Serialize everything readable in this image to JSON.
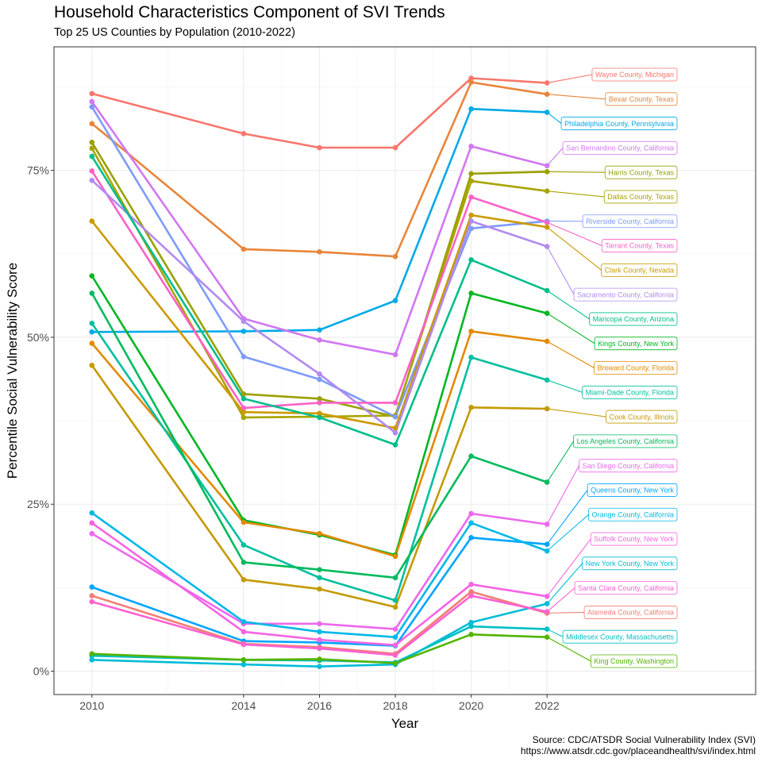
{
  "chart_data": {
    "type": "line",
    "title": "Household Characteristics Component of SVI Trends",
    "subtitle": "Top 25 US Counties by Population (2010-2022)",
    "xlabel": "Year",
    "ylabel": "Percentile Social Vulnerability Score",
    "x": [
      2010,
      2014,
      2016,
      2018,
      2020,
      2022
    ],
    "xlim": [
      2009,
      2027.5
    ],
    "ylim": [
      -0.035,
      0.935
    ],
    "y_ticks": [
      0,
      0.25,
      0.5,
      0.75
    ],
    "y_tick_labels": [
      "0%",
      "25%",
      "50%",
      "75%"
    ],
    "x_tick_labels": [
      "2010",
      "2014",
      "2016",
      "2018",
      "2020",
      "2022"
    ],
    "grid": true,
    "legend": "direct labels at right",
    "caption": [
      "Source: CDC/ATSDR Social Vulnerability Index (SVI)",
      "https://www.atsdr.cdc.gov/placeandhealth/svi/index.html"
    ],
    "series": [
      {
        "name": "Wayne County, Michigan",
        "color": "#F8766D",
        "values": [
          0.865,
          0.805,
          0.784,
          0.784,
          0.888,
          0.881
        ]
      },
      {
        "name": "Bexar County, Texas",
        "color": "#E8853A",
        "values": [
          0.82,
          0.632,
          0.628,
          0.621,
          0.882,
          0.864
        ]
      },
      {
        "name": "Philadelphia County, Pennsylvania",
        "color": "#00A9E8",
        "values": [
          0.508,
          0.509,
          0.511,
          0.555,
          0.842,
          0.837
        ]
      },
      {
        "name": "San Bernardino County, California",
        "color": "#D177F2",
        "values": [
          0.853,
          0.528,
          0.496,
          0.474,
          0.786,
          0.757
        ]
      },
      {
        "name": "Harris County, Texas",
        "color": "#9AA000",
        "values": [
          0.792,
          0.415,
          0.408,
          0.381,
          0.745,
          0.748
        ]
      },
      {
        "name": "Dallas County, Texas",
        "color": "#A8A400",
        "values": [
          0.783,
          0.38,
          0.381,
          0.383,
          0.734,
          0.719
        ]
      },
      {
        "name": "Riverside County, California",
        "color": "#7E9BFA",
        "values": [
          0.845,
          0.471,
          0.437,
          0.381,
          0.663,
          0.674
        ]
      },
      {
        "name": "Tarrant County, Texas",
        "color": "#FB61C7",
        "values": [
          0.749,
          0.394,
          0.402,
          0.402,
          0.71,
          0.672
        ]
      },
      {
        "name": "Clark County, Nevada",
        "color": "#CC9A00",
        "values": [
          0.674,
          0.388,
          0.386,
          0.364,
          0.683,
          0.665
        ]
      },
      {
        "name": "Sacramento County, California",
        "color": "#B28AF0",
        "values": [
          0.735,
          0.524,
          0.445,
          0.357,
          0.674,
          0.636
        ]
      },
      {
        "name": "Maricopa County, Arizona",
        "color": "#00BE8C",
        "values": [
          0.771,
          0.408,
          0.38,
          0.339,
          0.616,
          0.57
        ]
      },
      {
        "name": "Kings County, New York",
        "color": "#00B622",
        "values": [
          0.592,
          0.226,
          0.204,
          0.174,
          0.566,
          0.536
        ]
      },
      {
        "name": "Broward County, Florida",
        "color": "#E38900",
        "values": [
          0.491,
          0.223,
          0.206,
          0.172,
          0.509,
          0.494
        ]
      },
      {
        "name": "Miami-Dade County, Florida",
        "color": "#00BFA0",
        "values": [
          0.521,
          0.189,
          0.14,
          0.106,
          0.47,
          0.436
        ]
      },
      {
        "name": "Cook County, Illinois",
        "color": "#C49A00",
        "values": [
          0.458,
          0.137,
          0.123,
          0.096,
          0.395,
          0.393
        ]
      },
      {
        "name": "Los Angeles County, California",
        "color": "#00BA5C",
        "values": [
          0.566,
          0.163,
          0.152,
          0.14,
          0.322,
          0.283
        ]
      },
      {
        "name": "San Diego County, California",
        "color": "#ED68ED",
        "values": [
          0.206,
          0.071,
          0.071,
          0.063,
          0.236,
          0.22
        ]
      },
      {
        "name": "Queens County, New York",
        "color": "#00A5FF",
        "values": [
          0.126,
          0.045,
          0.043,
          0.038,
          0.2,
          0.19
        ]
      },
      {
        "name": "Orange County, California",
        "color": "#00B8E7",
        "values": [
          0.237,
          0.074,
          0.059,
          0.051,
          0.222,
          0.18
        ]
      },
      {
        "name": "Suffolk County, New York",
        "color": "#F564E3",
        "values": [
          0.222,
          0.059,
          0.047,
          0.039,
          0.13,
          0.112
        ]
      },
      {
        "name": "New York County, New York",
        "color": "#00BCD8",
        "values": [
          0.017,
          0.01,
          0.007,
          0.01,
          0.073,
          0.101
        ]
      },
      {
        "name": "Alameda County, California",
        "color": "#F07E75",
        "values": [
          0.113,
          0.041,
          0.036,
          0.026,
          0.119,
          0.087
        ]
      },
      {
        "name": "Santa Clara County, California",
        "color": "#FD61D1",
        "values": [
          0.104,
          0.04,
          0.034,
          0.024,
          0.113,
          0.089
        ]
      },
      {
        "name": "Middlesex County, Massachusetts",
        "color": "#00BFC4",
        "values": [
          0.023,
          0.017,
          0.016,
          0.013,
          0.067,
          0.063
        ]
      },
      {
        "name": "King County, Washington",
        "color": "#53B400",
        "values": [
          0.026,
          0.017,
          0.018,
          0.012,
          0.055,
          0.051
        ]
      }
    ]
  }
}
